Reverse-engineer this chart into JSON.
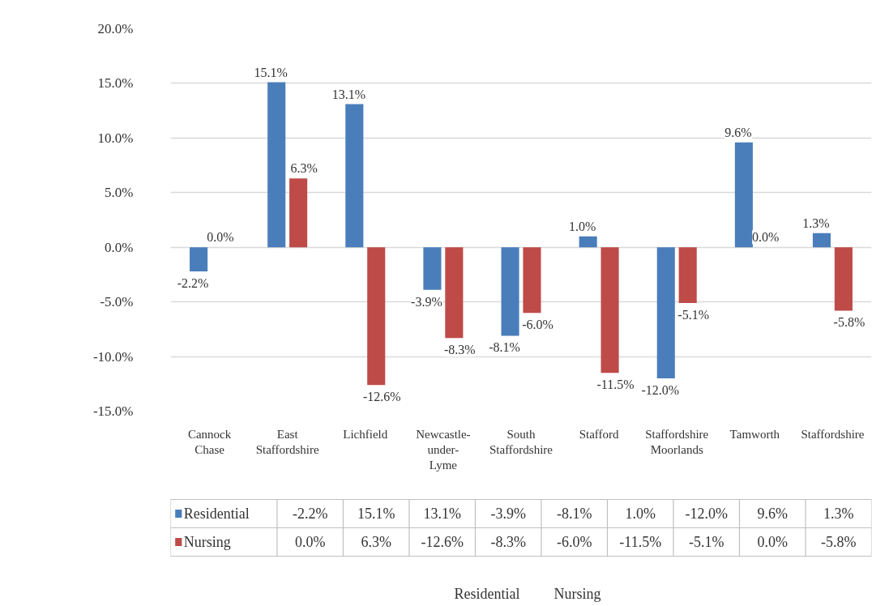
{
  "chart_data": {
    "type": "bar",
    "categories": [
      "Cannock Chase",
      "East Staffordshire",
      "Lichfield",
      "Newcastle-under-Lyme",
      "South Staffordshire",
      "Stafford",
      "Staffordshire Moorlands",
      "Tamworth",
      "Staffordshire"
    ],
    "series": [
      {
        "name": "Residential",
        "color": "#4a7ebb",
        "values": [
          -2.2,
          15.1,
          13.1,
          -3.9,
          -8.1,
          1.0,
          -12.0,
          9.6,
          1.3
        ],
        "value_labels": [
          "-2.2%",
          "15.1%",
          "13.1%",
          "-3.9%",
          "-8.1%",
          "1.0%",
          "-12.0%",
          "9.6%",
          "1.3%"
        ]
      },
      {
        "name": "Nursing",
        "color": "#be4b48",
        "values": [
          0.0,
          6.3,
          -12.6,
          -8.3,
          -6.0,
          -11.5,
          -5.1,
          0.0,
          -5.8
        ],
        "value_labels": [
          "0.0%",
          "6.3%",
          "-12.6%",
          "-8.3%",
          "-6.0%",
          "-11.5%",
          "-5.1%",
          "0.0%",
          "-5.8%"
        ]
      }
    ],
    "ylim": [
      -15,
      20
    ],
    "yticks": [
      {
        "value": -15,
        "label": "-15.0%"
      },
      {
        "value": -10,
        "label": "-10.0%"
      },
      {
        "value": -5,
        "label": "-5.0%"
      },
      {
        "value": 0,
        "label": "0.0%"
      },
      {
        "value": 5,
        "label": "5.0%"
      },
      {
        "value": 10,
        "label": "10.0%"
      },
      {
        "value": 15,
        "label": "15.0%"
      },
      {
        "value": 20,
        "label": "20.0%"
      }
    ],
    "grid": "y",
    "legend": "bottom",
    "tick_labels": "y"
  }
}
